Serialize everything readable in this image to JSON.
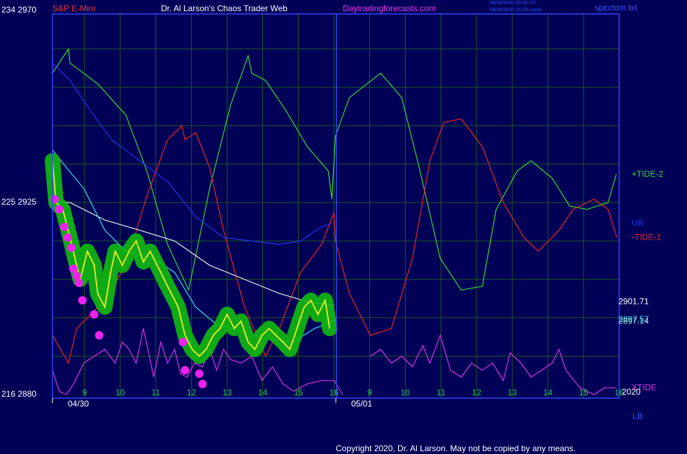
{
  "header": {
    "symbol": "S&P E-Mini",
    "title": "Dr. Al Larson's Chaos Trader Web",
    "site": "Daytradingforecasts.com",
    "timestamp_ut": "04/30/2020 20:20 UT",
    "timestamp_local": "04/30/2020 15:20 Local",
    "file": "spcctom.txt"
  },
  "copyright": "Copyright 2020, Dr. Al Larson. May not be copied by any means.",
  "chart_data": {
    "type": "line",
    "xlim": [
      8.1,
      24
    ],
    "ylim": [
      2880,
      2970
    ],
    "grid": true,
    "yticks": [
      {
        "value": 2880,
        "label": "216  2880"
      },
      {
        "value": 2925,
        "label": "225  2925"
      },
      {
        "value": 2970,
        "label": "234  2970"
      }
    ],
    "ygrid": [
      2889,
      2898,
      2907,
      2916,
      2925,
      2934,
      2943,
      2952,
      2961
    ],
    "xticks": [
      9,
      10,
      11,
      12,
      13,
      14,
      15,
      16,
      {
        "value": 17,
        "label": "9"
      },
      {
        "value": 18,
        "label": "10"
      },
      {
        "value": 19,
        "label": "11"
      },
      {
        "value": 20,
        "label": "12"
      },
      {
        "value": 21,
        "label": "13"
      },
      {
        "value": 22,
        "label": "14"
      },
      {
        "value": 23,
        "label": "15"
      },
      {
        "value": 24,
        "label": "16"
      }
    ],
    "dates": [
      {
        "value": 8.1,
        "label": "04/30"
      },
      {
        "value": 16.05,
        "label": "05/01"
      }
    ],
    "year": "2020",
    "lower_band": "LB",
    "series": [
      {
        "name": "+TIDE-2",
        "color": "#33dd33",
        "x": [
          8.1,
          8.55,
          8.59,
          9.37,
          10.16,
          10.75,
          11.33,
          11.92,
          12.51,
          13.1,
          13.59,
          13.69,
          14.08,
          14.67,
          15.25,
          15.84,
          15.94,
          16.04,
          16.43,
          17.31,
          17.9,
          18.39,
          18.98,
          19.57,
          20.16,
          20.55,
          21.14,
          21.53,
          22.12,
          22.61,
          23.1,
          23.69,
          23.92
        ],
        "values": [
          2955.3,
          2961.0,
          2957.7,
          2952.8,
          2945.5,
          2932.4,
          2915.2,
          2904.5,
          2928.3,
          2947.9,
          2959.4,
          2955.3,
          2953.6,
          2946.3,
          2938.1,
          2932.4,
          2925.8,
          2940.6,
          2949.6,
          2955.3,
          2949.6,
          2933.2,
          2911.9,
          2904.5,
          2905.4,
          2923.4,
          2932.4,
          2934.8,
          2930.7,
          2924.2,
          2923.4,
          2925.0,
          2931.6
        ]
      },
      {
        "name": "UB",
        "color": "#2233ee",
        "x": [
          8.1,
          8.59,
          9.18,
          9.76,
          10.55,
          11.33,
          12.12,
          12.9,
          13.69,
          14.47,
          15.06,
          15.65,
          15.94
        ],
        "values": [
          2957.7,
          2953.6,
          2946.3,
          2939.7,
          2934.8,
          2929.9,
          2921.7,
          2916.8,
          2916.0,
          2915.2,
          2916.0,
          2919.3,
          2920.1
        ]
      },
      {
        "name": "-TIDE-1",
        "color": "#ee2222",
        "x": [
          8.1,
          8.55,
          8.78,
          9.57,
          10.16,
          10.75,
          11.33,
          11.73,
          11.82,
          12.12,
          12.51,
          12.9,
          13.49,
          14.08,
          14.47,
          15.06,
          15.65,
          16.0,
          16.04,
          16.43,
          17.02,
          17.61,
          18.2,
          18.69,
          19.08,
          19.57,
          20.16,
          20.75,
          21.33,
          21.73,
          22.31,
          22.71,
          23.29,
          23.69,
          23.94
        ],
        "values": [
          2893.9,
          2887.4,
          2895.5,
          2902.1,
          2910.3,
          2926.6,
          2939.7,
          2943.0,
          2939.7,
          2941.4,
          2933.2,
          2918.5,
          2900.5,
          2889.0,
          2895.5,
          2908.6,
          2915.2,
          2922.6,
          2916.0,
          2903.7,
          2893.9,
          2895.5,
          2911.9,
          2934.8,
          2943.8,
          2944.6,
          2938.1,
          2925.0,
          2916.8,
          2913.6,
          2918.5,
          2923.4,
          2925.8,
          2923.4,
          2916.8
        ]
      },
      {
        "name": "XTIDE",
        "color": "#dd33dd",
        "x": [
          8.1,
          8.29,
          8.49,
          8.69,
          8.98,
          9.27,
          9.57,
          9.86,
          10.06,
          10.25,
          10.45,
          10.65,
          10.78,
          10.94,
          11.14,
          11.33,
          11.53,
          11.69,
          11.88,
          12.08,
          12.31,
          12.51,
          12.71,
          12.9,
          13.1,
          13.39,
          13.69,
          13.98,
          14.27,
          14.57,
          14.86,
          15.25,
          15.65,
          16.0,
          16.24,
          16.6,
          17.02,
          17.31,
          17.61,
          17.9,
          18.2,
          18.49,
          18.69,
          18.98,
          19.27,
          19.57,
          19.86,
          20.16,
          20.45,
          20.75,
          20.94,
          21.24,
          21.53,
          21.82,
          22.12,
          22.31,
          22.51,
          22.9,
          23.29,
          23.59,
          23.92
        ],
        "values": [
          2885.7,
          2880.8,
          2880.0,
          2882.5,
          2887.4,
          2889.0,
          2890.6,
          2887.4,
          2892.3,
          2890.6,
          2887.4,
          2895.5,
          2890.6,
          2884.1,
          2892.3,
          2887.4,
          2890.6,
          2884.9,
          2884.1,
          2887.4,
          2886.5,
          2890.6,
          2885.7,
          2890.6,
          2888.2,
          2887.4,
          2889.0,
          2883.3,
          2886.5,
          2882.5,
          2880.8,
          2882.5,
          2883.3,
          2883.3,
          2880.0,
          null,
          2889.0,
          2890.6,
          2887.4,
          2889.0,
          2886.5,
          2891.5,
          2887.4,
          2893.9,
          2885.7,
          2884.1,
          2887.4,
          2885.7,
          2887.4,
          2883.3,
          2889.8,
          2887.4,
          2884.1,
          2885.7,
          2887.4,
          2890.6,
          2885.7,
          2881.6,
          2880.0,
          2881.6,
          2881.6
        ]
      },
      {
        "color": "#eeeeee",
        "x": [
          8.1,
          8.59,
          9.57,
          10.55,
          11.53,
          12.51,
          13.49,
          14.47,
          15.25,
          16.0
        ],
        "values": [
          2925.3,
          2925.0,
          2920.9,
          2918.5,
          2916.0,
          2910.3,
          2907.0,
          2903.7,
          2901.8,
          2900.9
        ]
      },
      {
        "color": "#33e0ee",
        "x": [
          8.1,
          8.49,
          8.98,
          9.57,
          10.16,
          10.94,
          11.53,
          12.12,
          12.71,
          13.49,
          14.08,
          14.86,
          15.45,
          16.0
        ],
        "values": [
          2937.3,
          2933.2,
          2928.3,
          2918.5,
          2913.6,
          2911.9,
          2908.6,
          2900.5,
          2896.4,
          2894.7,
          2893.1,
          2892.3,
          2895.5,
          2897.2
        ]
      },
      {
        "color": "#eeee22",
        "glow": "#11bb11",
        "x": [
          8.1,
          8.2,
          8.39,
          8.59,
          8.78,
          8.88,
          9.08,
          9.27,
          9.37,
          9.57,
          9.73,
          9.86,
          10.06,
          10.25,
          10.45,
          10.65,
          10.84,
          11.14,
          11.33,
          11.63,
          11.82,
          12.02,
          12.22,
          12.41,
          12.61,
          12.8,
          13.0,
          13.2,
          13.39,
          13.59,
          13.78,
          13.98,
          14.18,
          14.37,
          14.57,
          14.76,
          14.96,
          15.16,
          15.35,
          15.55,
          15.75,
          15.88
        ],
        "values": [
          2934.8,
          2925.0,
          2923.4,
          2916.8,
          2910.3,
          2907.0,
          2913.6,
          2910.3,
          2903.7,
          2900.5,
          2908.6,
          2913.6,
          2910.3,
          2913.6,
          2916.0,
          2911.1,
          2913.6,
          2908.6,
          2905.4,
          2900.5,
          2893.9,
          2890.6,
          2889.0,
          2890.6,
          2893.9,
          2895.5,
          2898.8,
          2895.5,
          2897.2,
          2892.3,
          2890.6,
          2893.9,
          2895.5,
          2893.9,
          2892.3,
          2890.6,
          2895.5,
          2900.5,
          2902.1,
          2898.8,
          2902.1,
          2895.5
        ]
      },
      {
        "type": "scatter",
        "color": "#ee22ee",
        "x": [
          8.16,
          8.29,
          8.43,
          8.53,
          8.63,
          8.69,
          8.78,
          8.84,
          8.94,
          9.27,
          9.41,
          11.76,
          11.82,
          12.22,
          12.31
        ],
        "values": [
          2925.8,
          2923.4,
          2919.3,
          2916.8,
          2914.4,
          2909.5,
          2907.8,
          2906.2,
          2902.1,
          2898.8,
          2893.9,
          2892.3,
          2885.7,
          2884.9,
          2882.5
        ]
      }
    ],
    "price_labels": {
      "values": [
        2901.71,
        2897.57,
        2897.14
      ],
      "colors": [
        "#ffffff",
        "#33e0ee",
        "#aaddcc"
      ]
    }
  }
}
